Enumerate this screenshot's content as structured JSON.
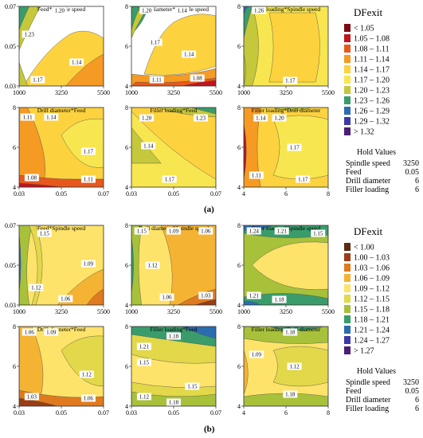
{
  "chart_data": [
    {
      "id": "a",
      "label": "(a)",
      "type": "contour",
      "legend": {
        "title": "DFexit",
        "items": [
          {
            "label": "< 1.05",
            "color": "#7a0a14"
          },
          {
            "label": "1.05 – 1.08",
            "color": "#c2141e"
          },
          {
            "label": "1.08 – 1.11",
            "color": "#e8581c"
          },
          {
            "label": "1.11 – 1.14",
            "color": "#f59a23"
          },
          {
            "label": "1.14 – 1.17",
            "color": "#fdd23f"
          },
          {
            "label": "1.17 – 1.20",
            "color": "#f7e64f"
          },
          {
            "label": "1.20 – 1.23",
            "color": "#c4c83a"
          },
          {
            "label": "1.23 – 1.26",
            "color": "#3a9c6b"
          },
          {
            "label": "1.26 – 1.29",
            "color": "#2b6cb0"
          },
          {
            "label": "1.29 – 1.32",
            "color": "#3d3aa6"
          },
          {
            "label": "> 1.32",
            "color": "#4b1e78"
          }
        ]
      },
      "hold": {
        "title": "Hold Values",
        "rows": [
          {
            "name": "Spindle speed",
            "value": "3250"
          },
          {
            "name": "Feed",
            "value": "0.05"
          },
          {
            "name": "Drill diameter",
            "value": "6"
          },
          {
            "name": "Filler loading",
            "value": "6"
          }
        ]
      },
      "panels": [
        {
          "title": "Feed*Spindle speed",
          "xticks": [
            "1000",
            "3250",
            "5500"
          ],
          "yticks": [
            "0.03",
            "0.05",
            "0.07"
          ],
          "labels": [
            "1.20",
            "1.23",
            "1.14",
            "1.17"
          ]
        },
        {
          "title": "Drill diameter*Spindle speed",
          "xticks": [
            "1000",
            "3250",
            "5500"
          ],
          "yticks": [
            "4",
            "6",
            "8"
          ],
          "labels": [
            "1.20",
            "1.14",
            "1.17",
            "1.14",
            "1.11",
            "1.08"
          ]
        },
        {
          "title": "Filler loading*Spindle speed",
          "xticks": [
            "1000",
            "3250",
            "5500"
          ],
          "yticks": [
            "4",
            "6",
            "8"
          ],
          "labels": [
            "1.26",
            "1.17"
          ]
        },
        {
          "title": "Drill diameter*Feed",
          "xticks": [
            "0.03",
            "0.05",
            "0.07"
          ],
          "yticks": [
            "4",
            "6",
            "8"
          ],
          "labels": [
            "1.11",
            "1.14",
            "1.17",
            "1.08",
            "1.11"
          ]
        },
        {
          "title": "Filler loading*Feed",
          "xticks": [
            "0.03",
            "0.05",
            "0.07"
          ],
          "yticks": [
            "4",
            "6",
            "8"
          ],
          "labels": [
            "1.20",
            "1.23",
            "1.14",
            "1.17"
          ]
        },
        {
          "title": "Filler loading*Drill diameter",
          "xticks": [
            "4",
            "6",
            "8"
          ],
          "yticks": [
            "4",
            "6",
            "8"
          ],
          "labels": [
            "1.14",
            "1.20",
            "1.17",
            "1.11",
            "1.17"
          ]
        }
      ]
    },
    {
      "id": "b",
      "label": "(b)",
      "type": "contour",
      "legend": {
        "title": "DFexit",
        "items": [
          {
            "label": "< 1.00",
            "color": "#5c2a10"
          },
          {
            "label": "1.00 – 1.03",
            "color": "#9a3d14"
          },
          {
            "label": "1.03 – 1.06",
            "color": "#e07a1e"
          },
          {
            "label": "1.06 – 1.09",
            "color": "#f5b333"
          },
          {
            "label": "1.09 – 1.12",
            "color": "#fde36a"
          },
          {
            "label": "1.12 – 1.15",
            "color": "#e2d84a"
          },
          {
            "label": "1.15 – 1.18",
            "color": "#a7c13a"
          },
          {
            "label": "1.18 – 1.21",
            "color": "#3a9c6b"
          },
          {
            "label": "1.21 – 1.24",
            "color": "#2b6cb0"
          },
          {
            "label": "1.24 – 1.27",
            "color": "#3d3aa6"
          },
          {
            "label": "> 1.27",
            "color": "#4b1e78"
          }
        ]
      },
      "hold": {
        "title": "Hold Values",
        "rows": [
          {
            "name": "Spindle speed",
            "value": "3250"
          },
          {
            "name": "Feed",
            "value": "0.05"
          },
          {
            "name": "Drill diameter",
            "value": "6"
          },
          {
            "name": "Filler loading",
            "value": "6"
          }
        ]
      },
      "panels": [
        {
          "title": "Feed*Spindle speed",
          "xticks": [
            "1000",
            "3250",
            "5500"
          ],
          "yticks": [
            "0.03",
            "0.05",
            "0.07"
          ],
          "labels": [
            "1.15",
            "1.09",
            "1.12",
            "1.06"
          ]
        },
        {
          "title": "Drill diameter*Spindle speed",
          "xticks": [
            "1000",
            "3250",
            "5500"
          ],
          "yticks": [
            "4",
            "6",
            "8"
          ],
          "labels": [
            "1.15",
            "1.09",
            "1.06",
            "1.12",
            "1.06",
            "1.03"
          ]
        },
        {
          "title": "Filler loading*Spindle speed",
          "xticks": [
            "1000",
            "3250",
            "5500"
          ],
          "yticks": [
            "4",
            "6",
            "8"
          ],
          "labels": [
            "1.24",
            "1.21",
            "1.15",
            "1.21",
            "1.18"
          ]
        },
        {
          "title": "Drill diameter*Feed",
          "xticks": [
            "0.03",
            "0.05",
            "0.07"
          ],
          "yticks": [
            "4",
            "6",
            "8"
          ],
          "labels": [
            "1.06",
            "1.09",
            "1.12",
            "1.03",
            "1.06"
          ]
        },
        {
          "title": "Filler loading*Feed",
          "xticks": [
            "0.03",
            "0.05",
            "0.07"
          ],
          "yticks": [
            "4",
            "6",
            "8"
          ],
          "labels": [
            "1.21",
            "1.15",
            "1.18",
            "1.15",
            "1.12",
            "1.18"
          ]
        },
        {
          "title": "Filler loading*Drill diameter",
          "xticks": [
            "4",
            "6",
            "8"
          ],
          "yticks": [
            "4",
            "6",
            "8"
          ],
          "labels": [
            "1.18",
            "1.09",
            "1.12",
            "1.18"
          ]
        }
      ]
    }
  ]
}
